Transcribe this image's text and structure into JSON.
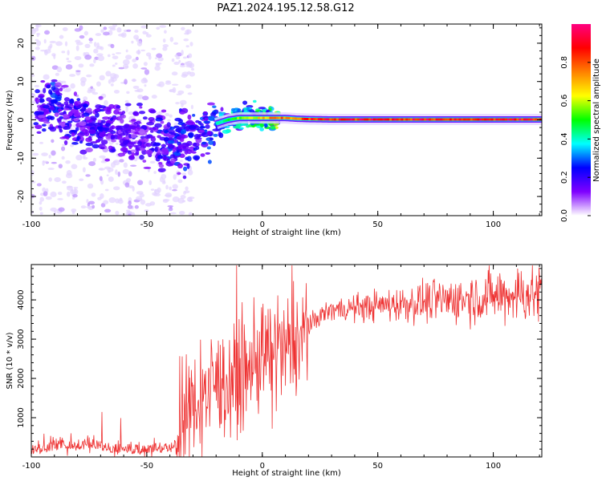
{
  "figure_title": "PAZ1.2024.195.12.58.G12",
  "chart_data": [
    {
      "type": "heatmap",
      "xlabel": "Height of straight line (km)",
      "ylabel": "Frequency (Hz)",
      "xlim": [
        -100,
        121
      ],
      "ylim": [
        -25,
        25
      ],
      "xticks": [
        -100,
        -50,
        0,
        50,
        100
      ],
      "yticks": [
        -20,
        -10,
        0,
        10,
        20
      ],
      "grid": false,
      "colorbar": {
        "label": "Normalized spectral amplitude",
        "range": [
          0,
          1
        ],
        "ticks": [
          0.0,
          0.2,
          0.4,
          0.6,
          0.8
        ],
        "colors": [
          "#ffffff",
          "#7f00ff",
          "#0000ff",
          "#00ffff",
          "#00ff00",
          "#ffff00",
          "#ff8000",
          "#ff0000",
          "#ff0080"
        ]
      },
      "ridge": {
        "description_points_x": [
          -100,
          -95,
          -90,
          -85,
          -80,
          -75,
          -70,
          -65,
          -60,
          -55,
          -50,
          -45,
          -40,
          -35,
          -30,
          -25,
          -20,
          -15,
          -10,
          -5,
          0,
          5,
          10,
          15,
          20,
          30,
          40,
          50,
          60,
          70,
          80,
          90,
          100,
          110,
          121
        ],
        "frequency_hz": [
          2,
          3,
          4,
          1,
          0,
          -1,
          -2,
          -2,
          -3,
          -4,
          -5,
          -6,
          -6,
          -5,
          -4,
          -3,
          -1,
          0,
          0.5,
          0.5,
          0.5,
          0.5,
          0.5,
          0.3,
          0.2,
          0.1,
          0.1,
          0.1,
          0.1,
          0.1,
          0.1,
          0.1,
          0.1,
          0.1,
          0.1
        ],
        "amplitude": [
          0.3,
          0.3,
          0.35,
          0.3,
          0.3,
          0.3,
          0.3,
          0.25,
          0.25,
          0.25,
          0.25,
          0.3,
          0.35,
          0.35,
          0.35,
          0.35,
          0.4,
          0.5,
          0.55,
          0.6,
          0.7,
          0.75,
          0.75,
          0.8,
          0.85,
          0.9,
          0.9,
          0.9,
          0.9,
          0.9,
          0.9,
          0.9,
          0.9,
          0.9,
          0.9
        ]
      }
    },
    {
      "type": "line",
      "xlabel": "Height of straight line (km)",
      "ylabel": "SNR (10 * v/v)",
      "xlim": [
        -100,
        121
      ],
      "ylim": [
        0,
        4900
      ],
      "xticks": [
        -100,
        -50,
        0,
        50,
        100
      ],
      "yticks": [
        1000,
        2000,
        3000,
        4000
      ],
      "grid": false,
      "series": [
        {
          "color": "#ee3333",
          "x": [
            -100,
            -95,
            -90,
            -85,
            -80,
            -75,
            -70,
            -65,
            -60,
            -55,
            -50,
            -45,
            -40,
            -37,
            -35,
            -30,
            -25,
            -20,
            -15,
            -10,
            -5,
            0,
            5,
            10,
            15,
            20,
            25,
            30,
            40,
            50,
            60,
            70,
            80,
            90,
            100,
            110,
            121
          ],
          "y": [
            150,
            200,
            250,
            300,
            250,
            350,
            250,
            150,
            200,
            150,
            150,
            200,
            220,
            300,
            800,
            1300,
            1600,
            1900,
            1900,
            2000,
            2300,
            2500,
            2600,
            2700,
            2900,
            3300,
            3600,
            3750,
            3800,
            3850,
            3900,
            3950,
            4000,
            4050,
            4100,
            4150,
            4150
          ]
        }
      ]
    }
  ]
}
